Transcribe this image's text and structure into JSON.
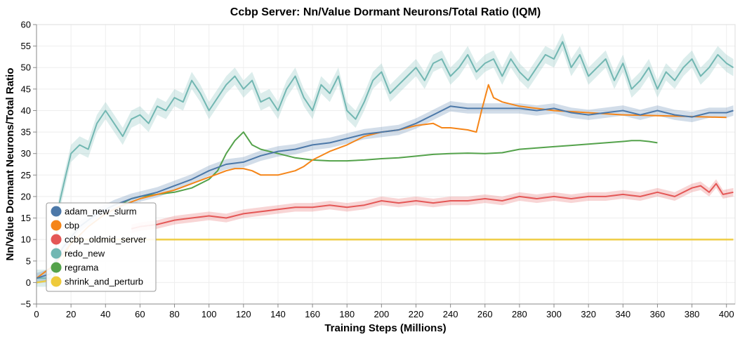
{
  "chart_data": {
    "type": "line",
    "title": "Ccbp Server: Nn/Value Dormant Neurons/Total Ratio (IQM)",
    "xlabel": "Training Steps (Millions)",
    "ylabel": "Nn/Value Dormant Neurons/Total Ratio",
    "xlim": [
      0,
      405
    ],
    "ylim": [
      -5,
      60
    ],
    "xticks": [
      0,
      20,
      40,
      60,
      80,
      100,
      120,
      140,
      160,
      180,
      200,
      220,
      240,
      260,
      280,
      300,
      320,
      340,
      360,
      380,
      400
    ],
    "yticks": [
      -5,
      0,
      5,
      10,
      15,
      20,
      25,
      30,
      35,
      40,
      45,
      50,
      55,
      60
    ],
    "grid": true,
    "legend_position": "bottom-left",
    "series": [
      {
        "name": "adam_new_slurm",
        "color": "#4c78a8",
        "band": 1.2,
        "points": [
          [
            0,
            1
          ],
          [
            8,
            2
          ],
          [
            15,
            8
          ],
          [
            25,
            13
          ],
          [
            35,
            16
          ],
          [
            45,
            18
          ],
          [
            55,
            19.5
          ],
          [
            60,
            20
          ],
          [
            70,
            21
          ],
          [
            80,
            22.5
          ],
          [
            90,
            24
          ],
          [
            100,
            26
          ],
          [
            110,
            27.5
          ],
          [
            120,
            28
          ],
          [
            130,
            29.5
          ],
          [
            140,
            30.5
          ],
          [
            150,
            31
          ],
          [
            160,
            32
          ],
          [
            170,
            32.5
          ],
          [
            180,
            33.5
          ],
          [
            190,
            34.5
          ],
          [
            200,
            35
          ],
          [
            210,
            35.5
          ],
          [
            220,
            37
          ],
          [
            230,
            39
          ],
          [
            240,
            41
          ],
          [
            250,
            40.5
          ],
          [
            260,
            40.5
          ],
          [
            270,
            40.5
          ],
          [
            280,
            40.5
          ],
          [
            290,
            40
          ],
          [
            300,
            40.5
          ],
          [
            310,
            39.5
          ],
          [
            320,
            39
          ],
          [
            330,
            39.5
          ],
          [
            340,
            40
          ],
          [
            350,
            39
          ],
          [
            360,
            40
          ],
          [
            370,
            39
          ],
          [
            380,
            38.5
          ],
          [
            390,
            39.5
          ],
          [
            400,
            39.5
          ],
          [
            404,
            40
          ]
        ]
      },
      {
        "name": "cbp",
        "color": "#f58518",
        "band": 0,
        "points": [
          [
            0,
            1
          ],
          [
            10,
            4
          ],
          [
            20,
            9
          ],
          [
            30,
            13
          ],
          [
            40,
            16
          ],
          [
            50,
            18
          ],
          [
            60,
            19.5
          ],
          [
            70,
            20.5
          ],
          [
            80,
            21.5
          ],
          [
            90,
            23
          ],
          [
            100,
            24.5
          ],
          [
            110,
            26
          ],
          [
            115,
            26.5
          ],
          [
            120,
            26.5
          ],
          [
            125,
            26
          ],
          [
            130,
            25
          ],
          [
            140,
            25
          ],
          [
            150,
            26
          ],
          [
            155,
            27
          ],
          [
            160,
            28.5
          ],
          [
            170,
            30.5
          ],
          [
            180,
            32
          ],
          [
            190,
            34
          ],
          [
            200,
            35
          ],
          [
            210,
            35.5
          ],
          [
            220,
            36.5
          ],
          [
            230,
            37
          ],
          [
            235,
            36
          ],
          [
            240,
            36
          ],
          [
            250,
            35.5
          ],
          [
            255,
            35
          ],
          [
            258,
            40
          ],
          [
            262,
            46
          ],
          [
            265,
            43
          ],
          [
            270,
            42
          ],
          [
            280,
            41
          ],
          [
            290,
            40.5
          ],
          [
            300,
            40
          ],
          [
            320,
            39.5
          ],
          [
            340,
            39
          ],
          [
            360,
            38.8
          ],
          [
            380,
            38.6
          ],
          [
            400,
            38.4
          ]
        ]
      },
      {
        "name": "ccbp_oldmid_server",
        "color": "#e45756",
        "band": 1.0,
        "points": [
          [
            55,
            12.5
          ],
          [
            60,
            13
          ],
          [
            70,
            13.5
          ],
          [
            80,
            14.5
          ],
          [
            90,
            15
          ],
          [
            100,
            15.5
          ],
          [
            110,
            15
          ],
          [
            120,
            16
          ],
          [
            130,
            16.5
          ],
          [
            140,
            17
          ],
          [
            150,
            17.5
          ],
          [
            160,
            17.5
          ],
          [
            170,
            18
          ],
          [
            180,
            17.5
          ],
          [
            190,
            18
          ],
          [
            200,
            19
          ],
          [
            210,
            18.5
          ],
          [
            220,
            19
          ],
          [
            230,
            18.5
          ],
          [
            240,
            19
          ],
          [
            250,
            19
          ],
          [
            260,
            19.5
          ],
          [
            270,
            19
          ],
          [
            280,
            20
          ],
          [
            290,
            19.5
          ],
          [
            300,
            20
          ],
          [
            310,
            19.5
          ],
          [
            320,
            20
          ],
          [
            330,
            20
          ],
          [
            340,
            20.5
          ],
          [
            350,
            20
          ],
          [
            360,
            21
          ],
          [
            370,
            20
          ],
          [
            380,
            22
          ],
          [
            385,
            22.5
          ],
          [
            390,
            21
          ],
          [
            394,
            23
          ],
          [
            398,
            20.5
          ],
          [
            404,
            21
          ]
        ]
      },
      {
        "name": "redo_new",
        "color": "#72b7b2",
        "band": 2.0,
        "points": [
          [
            0,
            1
          ],
          [
            10,
            1
          ],
          [
            13,
            18
          ],
          [
            17,
            25
          ],
          [
            20,
            30
          ],
          [
            25,
            32
          ],
          [
            30,
            31
          ],
          [
            35,
            37
          ],
          [
            40,
            40
          ],
          [
            45,
            37
          ],
          [
            50,
            34
          ],
          [
            55,
            38
          ],
          [
            60,
            39
          ],
          [
            65,
            37
          ],
          [
            70,
            41
          ],
          [
            75,
            40
          ],
          [
            80,
            43
          ],
          [
            85,
            42
          ],
          [
            90,
            47
          ],
          [
            95,
            44
          ],
          [
            100,
            40
          ],
          [
            105,
            43
          ],
          [
            110,
            46
          ],
          [
            115,
            48
          ],
          [
            120,
            45
          ],
          [
            125,
            47
          ],
          [
            130,
            42
          ],
          [
            135,
            43
          ],
          [
            140,
            40
          ],
          [
            145,
            45
          ],
          [
            150,
            48
          ],
          [
            155,
            43
          ],
          [
            160,
            40
          ],
          [
            165,
            46
          ],
          [
            170,
            44
          ],
          [
            175,
            48
          ],
          [
            180,
            40
          ],
          [
            185,
            38
          ],
          [
            190,
            42
          ],
          [
            195,
            47
          ],
          [
            200,
            49
          ],
          [
            205,
            44
          ],
          [
            210,
            46
          ],
          [
            215,
            48
          ],
          [
            220,
            50
          ],
          [
            225,
            47
          ],
          [
            230,
            51
          ],
          [
            235,
            52
          ],
          [
            240,
            48
          ],
          [
            245,
            50
          ],
          [
            250,
            53
          ],
          [
            255,
            49
          ],
          [
            260,
            51
          ],
          [
            265,
            52
          ],
          [
            270,
            48
          ],
          [
            275,
            52
          ],
          [
            280,
            49
          ],
          [
            285,
            47
          ],
          [
            290,
            50
          ],
          [
            295,
            53
          ],
          [
            300,
            52
          ],
          [
            305,
            56
          ],
          [
            310,
            50
          ],
          [
            315,
            53
          ],
          [
            320,
            48
          ],
          [
            325,
            50
          ],
          [
            330,
            52
          ],
          [
            335,
            47
          ],
          [
            340,
            51
          ],
          [
            345,
            45
          ],
          [
            350,
            47
          ],
          [
            355,
            50
          ],
          [
            360,
            45
          ],
          [
            365,
            49
          ],
          [
            370,
            47
          ],
          [
            375,
            50
          ],
          [
            380,
            52
          ],
          [
            385,
            48
          ],
          [
            390,
            50
          ],
          [
            395,
            53
          ],
          [
            400,
            51
          ],
          [
            404,
            50
          ]
        ]
      },
      {
        "name": "regrama",
        "color": "#54a24b",
        "band": 0,
        "points": [
          [
            50,
            18.5
          ],
          [
            55,
            19.5
          ],
          [
            60,
            20
          ],
          [
            70,
            20.5
          ],
          [
            80,
            21
          ],
          [
            90,
            22
          ],
          [
            100,
            24
          ],
          [
            105,
            26
          ],
          [
            110,
            30
          ],
          [
            115,
            33
          ],
          [
            120,
            35
          ],
          [
            125,
            32
          ],
          [
            130,
            31
          ],
          [
            140,
            30
          ],
          [
            150,
            29
          ],
          [
            160,
            28.5
          ],
          [
            170,
            28.3
          ],
          [
            180,
            28.3
          ],
          [
            190,
            28.5
          ],
          [
            200,
            28.8
          ],
          [
            210,
            29
          ],
          [
            220,
            29.4
          ],
          [
            230,
            29.8
          ],
          [
            240,
            30
          ],
          [
            250,
            30.1
          ],
          [
            260,
            30
          ],
          [
            270,
            30.2
          ],
          [
            280,
            31
          ],
          [
            290,
            31.3
          ],
          [
            300,
            31.6
          ],
          [
            310,
            31.9
          ],
          [
            320,
            32.2
          ],
          [
            330,
            32.5
          ],
          [
            340,
            32.8
          ],
          [
            345,
            33
          ],
          [
            350,
            33
          ],
          [
            355,
            32.8
          ],
          [
            360,
            32.5
          ]
        ]
      },
      {
        "name": "shrink_and_perturb",
        "color": "#eeca3b",
        "band": 0.3,
        "points": [
          [
            0,
            0
          ],
          [
            5,
            0.3
          ],
          [
            10,
            1
          ],
          [
            15,
            5
          ],
          [
            20,
            9.5
          ],
          [
            25,
            10
          ],
          [
            400,
            10
          ],
          [
            404,
            10
          ]
        ]
      }
    ]
  }
}
